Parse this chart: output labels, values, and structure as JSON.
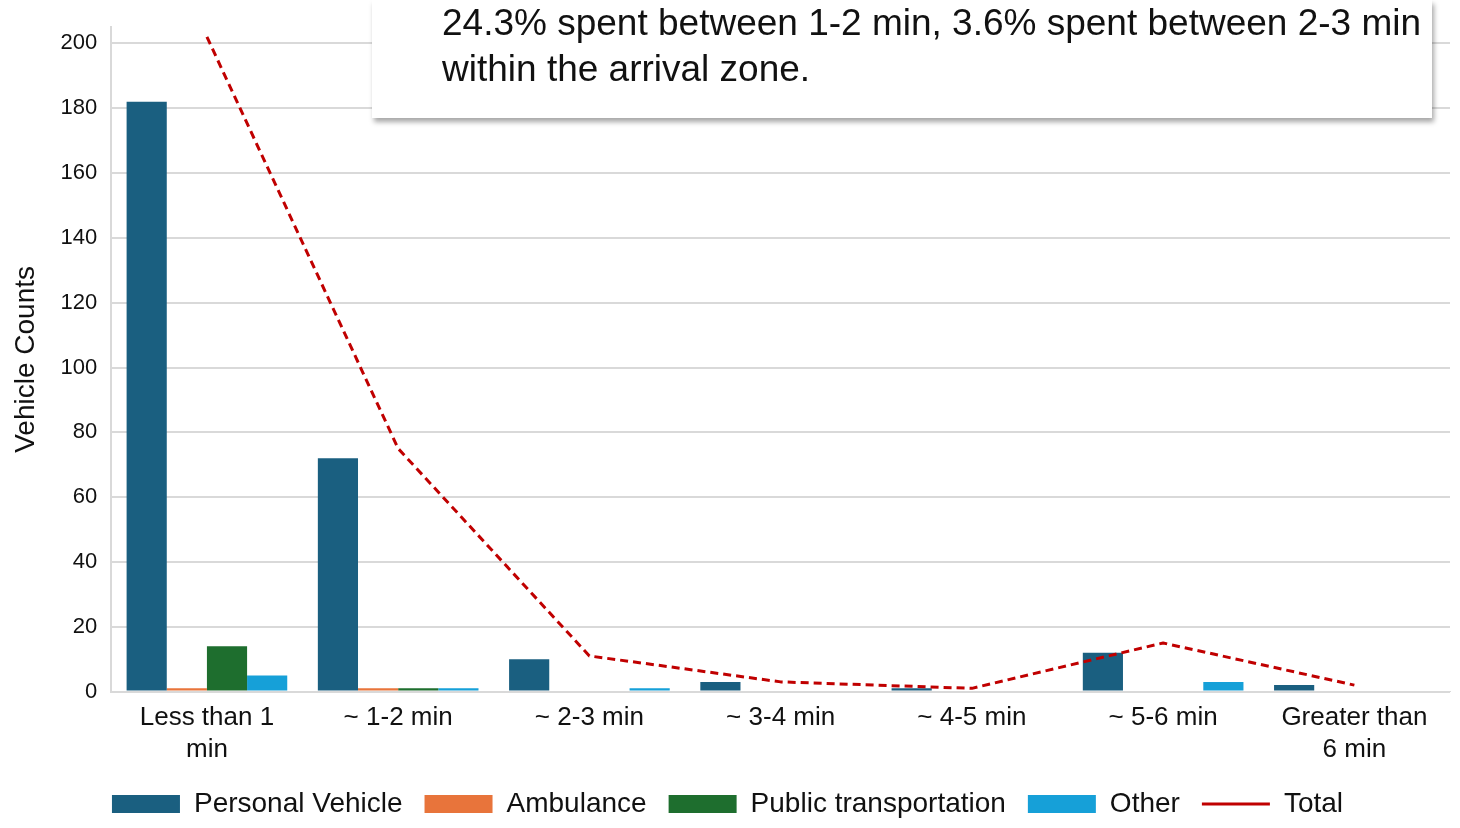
{
  "chart_data": {
    "type": "bar",
    "ylabel": "Vehicle Counts",
    "annotations": [
      "24.3% spent between 1-2 min, 3.6% spent between 2-3 min within the arrival zone."
    ],
    "categories": [
      "Less than 1 min",
      "~ 1-2 min",
      "~ 2-3 min",
      "~ 3-4 min",
      "~ 4-5 min",
      "~ 5-6 min",
      "Greater than 6 min"
    ],
    "series": [
      {
        "name": "Personal Vehicle",
        "color": "#1a5f80",
        "values": [
          182,
          72,
          10,
          3,
          1,
          12,
          2
        ]
      },
      {
        "name": "Ambulance",
        "color": "#e8743b",
        "values": [
          1,
          1,
          0,
          0,
          0,
          0,
          0
        ]
      },
      {
        "name": "Public transportation",
        "color": "#1e6e2e",
        "values": [
          14,
          1,
          0,
          0,
          0,
          0,
          0
        ]
      },
      {
        "name": "Other",
        "color": "#16a0d8",
        "values": [
          5,
          1,
          1,
          0,
          0,
          3,
          0
        ]
      },
      {
        "name": "Total",
        "type": "line",
        "color": "#c00000",
        "line_style": "dashed",
        "marker": "none",
        "values": [
          202,
          75,
          11,
          3,
          1,
          15,
          2
        ]
      }
    ],
    "ylim": [
      0,
      205
    ],
    "yticks": [
      0,
      20,
      40,
      60,
      80,
      100,
      120,
      140,
      160,
      180,
      200
    ],
    "grid": "y",
    "legend": "bottom"
  }
}
